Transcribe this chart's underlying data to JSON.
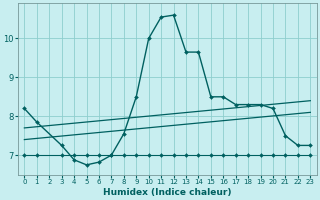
{
  "xlabel": "Humidex (Indice chaleur)",
  "background_color": "#c8eef0",
  "grid_color": "#8ecece",
  "line_color": "#006060",
  "xlim": [
    -0.5,
    23.5
  ],
  "ylim": [
    6.5,
    10.9
  ],
  "yticks": [
    7,
    8,
    9,
    10
  ],
  "xticks": [
    0,
    1,
    2,
    3,
    4,
    5,
    6,
    7,
    8,
    9,
    10,
    11,
    12,
    13,
    14,
    15,
    16,
    17,
    18,
    19,
    20,
    21,
    22,
    23
  ],
  "series": [
    {
      "x": [
        0,
        1,
        3,
        4,
        5,
        6,
        7,
        8,
        9,
        10,
        11,
        12,
        13,
        14,
        15,
        16,
        17,
        18,
        19,
        20,
        21,
        22,
        23
      ],
      "y": [
        8.2,
        7.85,
        7.25,
        6.88,
        6.75,
        6.82,
        7.0,
        7.55,
        8.5,
        10.0,
        10.55,
        10.6,
        9.65,
        9.65,
        8.5,
        8.5,
        8.3,
        8.3,
        8.3,
        8.2,
        7.5,
        7.25,
        7.25
      ],
      "marker": true,
      "linewidth": 1.0
    },
    {
      "x": [
        0,
        1,
        3,
        4,
        5,
        6,
        7,
        8,
        9,
        10,
        11,
        12,
        13,
        14,
        15,
        16,
        17,
        18,
        19,
        20,
        21,
        22,
        23
      ],
      "y": [
        7.0,
        7.0,
        7.0,
        7.0,
        7.0,
        7.0,
        7.0,
        7.0,
        7.0,
        7.0,
        7.0,
        7.0,
        7.0,
        7.0,
        7.0,
        7.0,
        7.0,
        7.0,
        7.0,
        7.0,
        7.0,
        7.0,
        7.0
      ],
      "marker": true,
      "linewidth": 0.8
    },
    {
      "x": [
        0,
        23
      ],
      "y": [
        7.7,
        8.4
      ],
      "marker": false,
      "linewidth": 0.9
    },
    {
      "x": [
        0,
        23
      ],
      "y": [
        7.4,
        8.1
      ],
      "marker": false,
      "linewidth": 0.9
    }
  ]
}
